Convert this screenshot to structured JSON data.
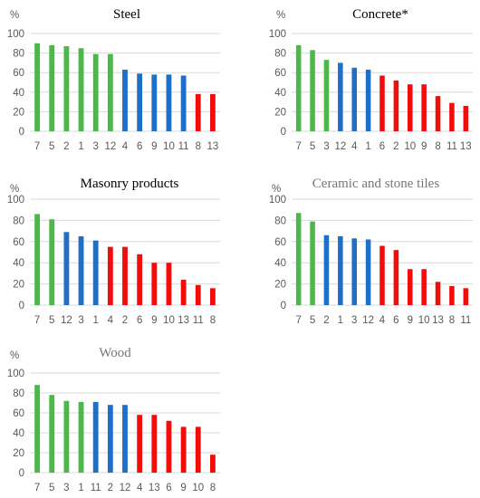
{
  "colors": {
    "green": "#4cb847",
    "blue": "#1f6fc8",
    "red": "#f20d0d",
    "grid": "#d9d9d9"
  },
  "chart_data": [
    {
      "type": "bar",
      "title": "Steel",
      "unit": "%",
      "ylim": [
        0,
        100
      ],
      "yticks": [
        0,
        20,
        40,
        60,
        80,
        100
      ],
      "grid": true,
      "categories": [
        "7",
        "5",
        "2",
        "1",
        "3",
        "12",
        "4",
        "6",
        "9",
        "10",
        "11",
        "8",
        "13"
      ],
      "values": [
        90,
        88,
        87,
        85,
        79,
        79,
        63,
        59,
        58,
        58,
        57,
        38,
        38
      ],
      "bar_colors": [
        "green",
        "green",
        "green",
        "green",
        "green",
        "green",
        "blue",
        "blue",
        "blue",
        "blue",
        "blue",
        "red",
        "red"
      ]
    },
    {
      "type": "bar",
      "title": "Concrete*",
      "unit": "%",
      "ylim": [
        0,
        100
      ],
      "yticks": [
        0,
        20,
        40,
        60,
        80,
        100
      ],
      "grid": true,
      "categories": [
        "7",
        "5",
        "3",
        "12",
        "4",
        "1",
        "6",
        "2",
        "10",
        "9",
        "8",
        "11",
        "13"
      ],
      "values": [
        88,
        83,
        73,
        70,
        65,
        63,
        57,
        52,
        48,
        48,
        36,
        29,
        26
      ],
      "bar_colors": [
        "green",
        "green",
        "green",
        "blue",
        "blue",
        "blue",
        "red",
        "red",
        "red",
        "red",
        "red",
        "red",
        "red"
      ]
    },
    {
      "type": "bar",
      "title": "Masonry products",
      "unit": "%",
      "ylim": [
        0,
        100
      ],
      "yticks": [
        0,
        20,
        40,
        60,
        80,
        100
      ],
      "grid": true,
      "categories": [
        "7",
        "5",
        "12",
        "3",
        "1",
        "4",
        "2",
        "6",
        "9",
        "10",
        "13",
        "11",
        "8"
      ],
      "values": [
        86,
        81,
        69,
        65,
        61,
        55,
        55,
        48,
        40,
        40,
        24,
        19,
        16
      ],
      "bar_colors": [
        "green",
        "green",
        "blue",
        "blue",
        "blue",
        "red",
        "red",
        "red",
        "red",
        "red",
        "red",
        "red",
        "red"
      ]
    },
    {
      "type": "bar",
      "title": "Ceramic and stone tiles",
      "unit": "%",
      "ylim": [
        0,
        100
      ],
      "yticks": [
        0,
        20,
        40,
        60,
        80,
        100
      ],
      "grid": true,
      "categories": [
        "7",
        "5",
        "2",
        "1",
        "3",
        "12",
        "4",
        "6",
        "9",
        "10",
        "13",
        "8",
        "11"
      ],
      "values": [
        87,
        79,
        66,
        65,
        63,
        62,
        56,
        52,
        34,
        34,
        22,
        18,
        16
      ],
      "bar_colors": [
        "green",
        "green",
        "blue",
        "blue",
        "blue",
        "blue",
        "red",
        "red",
        "red",
        "red",
        "red",
        "red",
        "red"
      ]
    },
    {
      "type": "bar",
      "title": "Wood",
      "unit": "%",
      "ylim": [
        0,
        100
      ],
      "yticks": [
        0,
        20,
        40,
        60,
        80,
        100
      ],
      "grid": true,
      "categories": [
        "7",
        "5",
        "3",
        "1",
        "11",
        "2",
        "12",
        "4",
        "13",
        "6",
        "9",
        "10",
        "8"
      ],
      "values": [
        88,
        78,
        72,
        71,
        71,
        68,
        68,
        58,
        58,
        52,
        46,
        46,
        18
      ],
      "bar_colors": [
        "green",
        "green",
        "green",
        "green",
        "blue",
        "blue",
        "blue",
        "red",
        "red",
        "red",
        "red",
        "red",
        "red"
      ]
    }
  ]
}
